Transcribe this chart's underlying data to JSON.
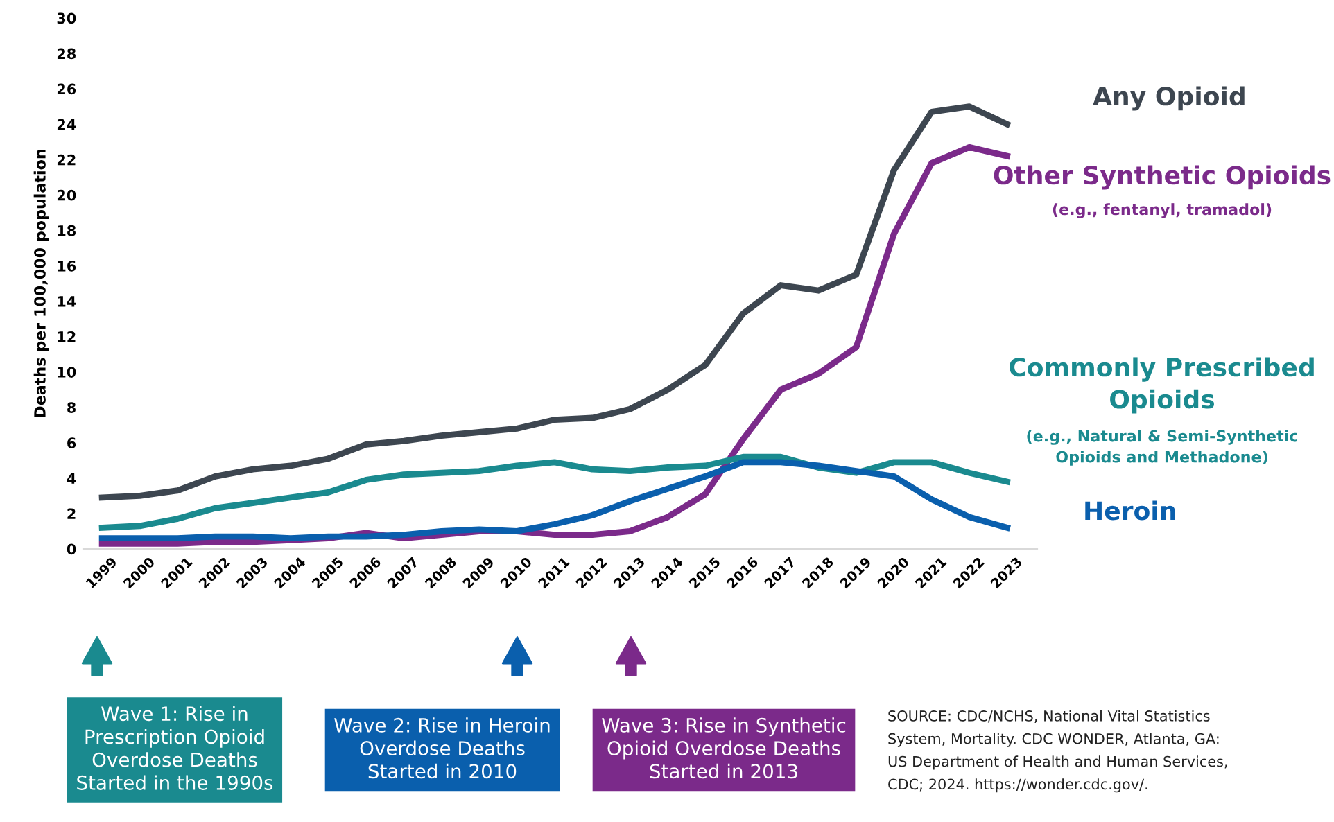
{
  "chart_data": {
    "type": "line",
    "ylabel": "Deaths per 100,000 population",
    "categories": [
      "1999",
      "2000",
      "2001",
      "2002",
      "2003",
      "2004",
      "2005",
      "2006",
      "2007",
      "2008",
      "2009",
      "2010",
      "2011",
      "2012",
      "2013",
      "2014",
      "2015",
      "2016",
      "2017",
      "2018",
      "2019",
      "2020",
      "2021",
      "2022",
      "2023"
    ],
    "ylim": [
      0,
      30
    ],
    "yticks": [
      0,
      2,
      4,
      6,
      8,
      10,
      12,
      14,
      16,
      18,
      20,
      22,
      24,
      26,
      28,
      30
    ],
    "grid": false,
    "legend": false,
    "marker": "none",
    "line_style": "solid",
    "series": [
      {
        "name": "Any Opioid",
        "color": "#3d4650",
        "values": [
          2.9,
          3.0,
          3.3,
          4.1,
          4.5,
          4.7,
          5.1,
          5.9,
          6.1,
          6.4,
          6.6,
          6.8,
          7.3,
          7.4,
          7.9,
          9.0,
          10.4,
          13.3,
          14.9,
          14.6,
          15.5,
          21.4,
          24.7,
          25.0,
          24.0
        ]
      },
      {
        "name": "Other Synthetic Opioids",
        "color": "#7b2a8a",
        "values": [
          0.3,
          0.3,
          0.3,
          0.4,
          0.4,
          0.5,
          0.6,
          0.9,
          0.6,
          0.8,
          1.0,
          1.0,
          0.8,
          0.8,
          1.0,
          1.8,
          3.1,
          6.2,
          9.0,
          9.9,
          11.4,
          17.8,
          21.8,
          22.7,
          22.2
        ]
      },
      {
        "name": "Commonly Prescribed\nOpioids",
        "color": "#1a8a8f",
        "values": [
          1.2,
          1.3,
          1.7,
          2.3,
          2.6,
          2.9,
          3.2,
          3.9,
          4.2,
          4.3,
          4.4,
          4.7,
          4.9,
          4.5,
          4.4,
          4.6,
          4.7,
          5.2,
          5.2,
          4.6,
          4.3,
          4.9,
          4.9,
          4.3,
          3.8
        ]
      },
      {
        "name": "Heroin",
        "color": "#0a5fad",
        "values": [
          0.6,
          0.6,
          0.6,
          0.7,
          0.7,
          0.6,
          0.7,
          0.7,
          0.8,
          1.0,
          1.1,
          1.0,
          1.4,
          1.9,
          2.7,
          3.4,
          4.1,
          4.9,
          4.9,
          4.7,
          4.4,
          4.1,
          2.8,
          1.8,
          1.2
        ]
      }
    ],
    "annotations": [
      "(e.g., fentanyl, tramadol)",
      "(e.g., Natural & Semi-Synthetic\nOpioids and Methadone)",
      "Wave 1: Rise in\nPrescription Opioid\nOverdose Deaths\nStarted in the 1990s",
      "Wave 2: Rise in Heroin\nOverdose Deaths\nStarted in 2010",
      "Wave 3: Rise in Synthetic\nOpioid Overdose Deaths\nStarted in 2013",
      "SOURCE: CDC/NCHS, National Vital Statistics\nSystem, Mortality. CDC WONDER, Atlanta, GA:\nUS Department of Health and Human Services,\nCDC; 2024. https://wonder.cdc.gov/."
    ]
  }
}
